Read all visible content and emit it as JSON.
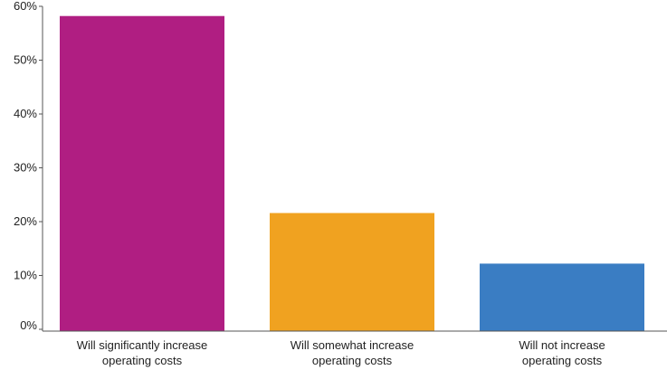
{
  "chart_data": {
    "type": "bar",
    "title": "",
    "xlabel": "",
    "ylabel": "",
    "categories": [
      [
        "Will significantly increase",
        "operating costs"
      ],
      [
        "Will somewhat increase",
        "operating costs"
      ],
      [
        "Will not increase",
        "operating costs"
      ]
    ],
    "values": [
      58.2,
      21.6,
      12.2
    ],
    "colors": [
      "#b01e82",
      "#f0a220",
      "#3a7dc3"
    ],
    "ylim": [
      0,
      60
    ],
    "yticks": [
      0,
      10,
      20,
      30,
      40,
      50,
      60
    ],
    "ytick_labels": [
      "0%",
      "10%",
      "20%",
      "30%",
      "40%",
      "50%",
      "60%"
    ],
    "unit": "%",
    "grid": false,
    "legend": "none"
  }
}
